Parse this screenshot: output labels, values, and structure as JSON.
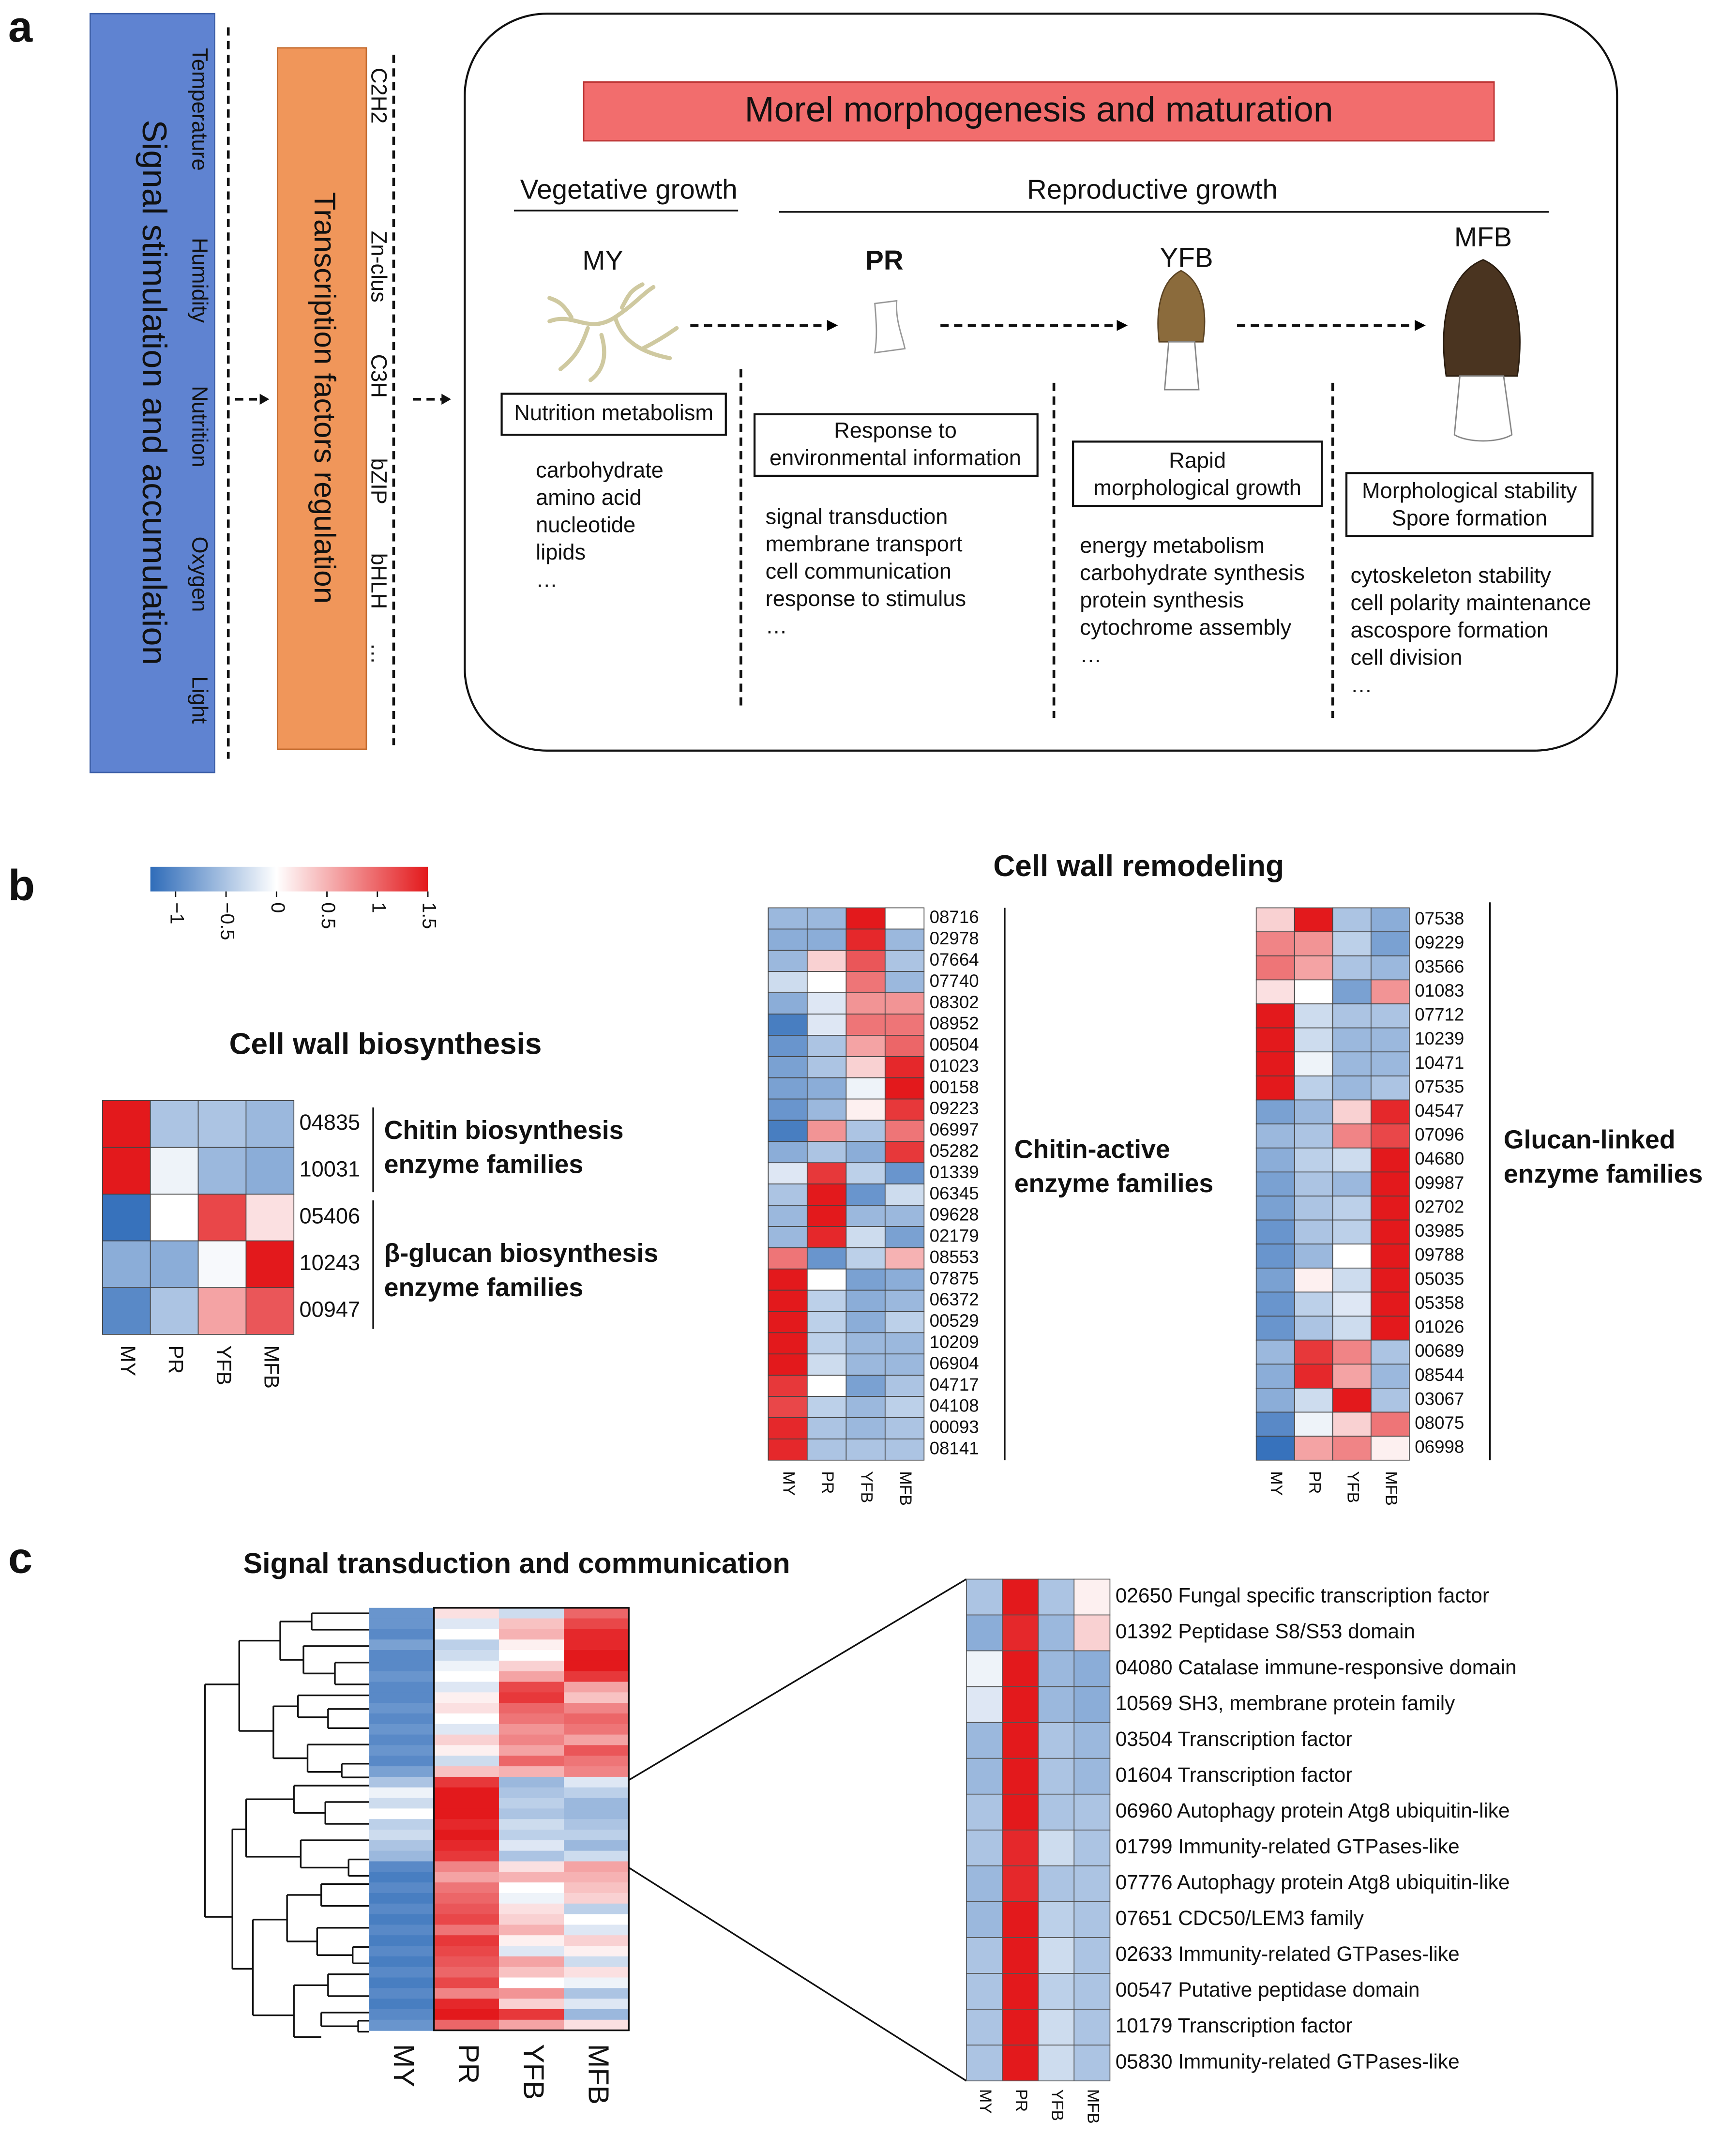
{
  "panel_a": {
    "label": "a",
    "signal_box": "Signal stimulation and accumulation",
    "signals": [
      "Temperature",
      "Humidity",
      "Nutrition",
      "Oxygen",
      "Light"
    ],
    "tf_box": "Transcription factors regulation",
    "tfs": [
      "C2H2",
      "Zn-clus",
      "C3H",
      "bZIP",
      "bHLH",
      "…"
    ],
    "title": "Morel morphogenesis and maturation",
    "phases": [
      "Vegetative growth",
      "Reproductive growth"
    ],
    "stages": [
      {
        "name": "MY",
        "box": [
          "Nutrition metabolism"
        ],
        "items": [
          "carbohydrate",
          "amino acid",
          "nucleotide",
          "lipids",
          "…"
        ]
      },
      {
        "name": "PR",
        "box": [
          "Response to",
          "environmental information"
        ],
        "items": [
          "signal transduction",
          "membrane transport",
          "cell communication",
          "response to stimulus",
          "…"
        ]
      },
      {
        "name": "YFB",
        "box": [
          "Rapid",
          "morphological growth"
        ],
        "items": [
          "energy metabolism",
          "carbohydrate synthesis",
          "protein synthesis",
          "cytochrome assembly",
          "…"
        ]
      },
      {
        "name": "MFB",
        "box": [
          "Morphological stability",
          "Spore formation"
        ],
        "items": [
          "cytoskeleton stability",
          "cell polarity maintenance",
          "ascospore formation",
          "cell division",
          "…"
        ]
      }
    ]
  },
  "panel_b": {
    "label": "b",
    "colorscale": {
      "range": [
        -1.25,
        1.5
      ],
      "colors": [
        "#2f6cb9",
        "#ffffff",
        "#e3191c"
      ],
      "ticks": [
        {
          "value": -1,
          "label": "−1"
        },
        {
          "value": -0.5,
          "label": "−0.5"
        },
        0,
        0.5,
        1,
        1.5
      ]
    },
    "title_remodeling": "Cell wall remodeling",
    "biosynthesis": {
      "title": "Cell wall biosynthesis",
      "rows": [
        "04835",
        "10031",
        "05406",
        "10243",
        "00947"
      ],
      "columns": [
        "MY",
        "PR",
        "YFB",
        "MFB"
      ],
      "groups": [
        [
          "Chitin biosynthesis",
          "enzyme families"
        ],
        [
          "β-glucan biosynthesis",
          "enzyme families"
        ]
      ],
      "values": [
        [
          1.5,
          -0.5,
          -0.5,
          -0.6
        ],
        [
          1.5,
          -0.1,
          -0.6,
          -0.7
        ],
        [
          -1.2,
          0,
          1.2,
          0.2
        ],
        [
          -0.7,
          -0.7,
          -0.05,
          1.5
        ],
        [
          -1.0,
          -0.5,
          0.6,
          1.1
        ]
      ]
    },
    "chitin_active": {
      "rows": [
        "08716",
        "02978",
        "07664",
        "07740",
        "08302",
        "08952",
        "00504",
        "01023",
        "00158",
        "09223",
        "06997",
        "05282",
        "01339",
        "06345",
        "09628",
        "02179",
        "08553",
        "07875",
        "06372",
        "00529",
        "10209",
        "06904",
        "04717",
        "04108",
        "00093",
        "08141"
      ],
      "columns": [
        "MY",
        "PR",
        "YFB",
        "MFB"
      ],
      "group": [
        "Chitin-active",
        "enzyme families"
      ],
      "values": [
        [
          -0.6,
          -0.6,
          1.5,
          0
        ],
        [
          -0.7,
          -0.7,
          1.4,
          -0.6
        ],
        [
          -0.6,
          0.3,
          1.1,
          -0.5
        ],
        [
          -0.3,
          0,
          0.9,
          -0.6
        ],
        [
          -0.7,
          -0.2,
          0.7,
          0.7
        ],
        [
          -1.1,
          -0.2,
          0.9,
          0.9
        ],
        [
          -0.9,
          -0.5,
          0.6,
          1.0
        ],
        [
          -0.8,
          -0.5,
          0.3,
          1.4
        ],
        [
          -0.8,
          -0.7,
          -0.1,
          1.5
        ],
        [
          -0.9,
          -0.6,
          0.1,
          1.3
        ],
        [
          -1.1,
          0.7,
          -0.5,
          0.9
        ],
        [
          -0.7,
          -0.5,
          -0.7,
          1.3
        ],
        [
          -0.2,
          1.3,
          -0.4,
          -0.9
        ],
        [
          -0.5,
          1.5,
          -0.9,
          -0.3
        ],
        [
          -0.6,
          1.5,
          -0.6,
          -0.6
        ],
        [
          -0.6,
          1.4,
          -0.3,
          -0.8
        ],
        [
          0.9,
          -0.9,
          -0.4,
          0.5
        ],
        [
          1.5,
          0,
          -0.8,
          -0.7
        ],
        [
          1.5,
          -0.4,
          -0.7,
          -0.6
        ],
        [
          1.5,
          -0.4,
          -0.7,
          -0.4
        ],
        [
          1.5,
          -0.4,
          -0.6,
          -0.6
        ],
        [
          1.5,
          -0.3,
          -0.6,
          -0.6
        ],
        [
          1.3,
          0,
          -0.8,
          -0.5
        ],
        [
          1.2,
          -0.4,
          -0.6,
          -0.4
        ],
        [
          1.4,
          -0.5,
          -0.6,
          -0.5
        ],
        [
          1.4,
          -0.5,
          -0.5,
          -0.5
        ]
      ]
    },
    "glucan_linked": {
      "rows": [
        "07538",
        "09229",
        "03566",
        "01083",
        "07712",
        "10239",
        "10471",
        "07535",
        "04547",
        "07096",
        "04680",
        "09987",
        "02702",
        "03985",
        "09788",
        "05035",
        "05358",
        "01026",
        "00689",
        "08544",
        "03067",
        "08075",
        "06998"
      ],
      "columns": [
        "MY",
        "PR",
        "YFB",
        "MFB"
      ],
      "group": [
        "Glucan-linked",
        "enzyme families"
      ],
      "values": [
        [
          0.3,
          1.5,
          -0.5,
          -0.7
        ],
        [
          0.8,
          0.7,
          -0.4,
          -0.8
        ],
        [
          0.9,
          0.6,
          -0.5,
          -0.6
        ],
        [
          0.2,
          0,
          -0.8,
          0.7
        ],
        [
          1.5,
          -0.3,
          -0.5,
          -0.5
        ],
        [
          1.5,
          -0.3,
          -0.6,
          -0.6
        ],
        [
          1.5,
          -0.1,
          -0.6,
          -0.6
        ],
        [
          1.5,
          -0.4,
          -0.6,
          -0.5
        ],
        [
          -0.8,
          -0.6,
          0.3,
          1.4
        ],
        [
          -0.6,
          -0.5,
          0.8,
          1.2
        ],
        [
          -0.7,
          -0.4,
          -0.3,
          1.5
        ],
        [
          -0.8,
          -0.5,
          -0.6,
          1.5
        ],
        [
          -0.8,
          -0.5,
          -0.4,
          1.5
        ],
        [
          -0.9,
          -0.5,
          -0.4,
          1.5
        ],
        [
          -0.9,
          -0.6,
          0,
          1.5
        ],
        [
          -0.8,
          0.1,
          -0.3,
          1.5
        ],
        [
          -0.9,
          -0.4,
          -0.2,
          1.5
        ],
        [
          -0.9,
          -0.5,
          -0.3,
          1.5
        ],
        [
          -0.6,
          1.3,
          0.8,
          -0.5
        ],
        [
          -0.7,
          1.4,
          0.6,
          -0.6
        ],
        [
          -0.7,
          -0.3,
          1.5,
          -0.5
        ],
        [
          -1.0,
          -0.1,
          0.3,
          0.9
        ],
        [
          -1.2,
          0.6,
          0.8,
          0.1
        ]
      ]
    }
  },
  "panel_c": {
    "label": "c",
    "title": "Signal transduction and communication",
    "overview": {
      "columns": [
        "MY",
        "PR",
        "YFB",
        "MFB"
      ],
      "values": [
        [
          -0.9,
          0.2,
          -0.3,
          1.0
        ],
        [
          -0.9,
          -0.2,
          0.4,
          1.2
        ],
        [
          -1.0,
          0.0,
          0.5,
          1.4
        ],
        [
          -0.8,
          -0.4,
          0.1,
          1.4
        ],
        [
          -1.0,
          -0.3,
          0.0,
          1.5
        ],
        [
          -1.0,
          -0.1,
          0.3,
          1.5
        ],
        [
          -0.9,
          0.0,
          0.6,
          1.3
        ],
        [
          -1.0,
          -0.2,
          1.2,
          0.6
        ],
        [
          -1.0,
          0.1,
          1.3,
          0.4
        ],
        [
          -0.9,
          0.2,
          1.0,
          0.8
        ],
        [
          -1.0,
          0.0,
          0.9,
          1.0
        ],
        [
          -0.9,
          -0.2,
          0.7,
          0.9
        ],
        [
          -1.0,
          0.3,
          0.8,
          0.6
        ],
        [
          -0.9,
          0.1,
          0.6,
          1.1
        ],
        [
          -1.0,
          -0.3,
          1.0,
          0.9
        ],
        [
          -0.8,
          0.4,
          0.5,
          0.8
        ],
        [
          -0.5,
          1.3,
          -0.6,
          -0.2
        ],
        [
          -0.1,
          1.5,
          -0.5,
          -0.4
        ],
        [
          -0.3,
          1.5,
          -0.4,
          -0.6
        ],
        [
          0.0,
          1.5,
          -0.5,
          -0.6
        ],
        [
          -0.4,
          1.4,
          -0.3,
          -0.5
        ],
        [
          -0.3,
          1.5,
          -0.4,
          -0.4
        ],
        [
          -0.5,
          1.4,
          -0.2,
          -0.6
        ],
        [
          -0.6,
          1.3,
          -0.5,
          -0.3
        ],
        [
          -1.0,
          0.8,
          0.2,
          0.6
        ],
        [
          -1.1,
          0.6,
          0.5,
          0.5
        ],
        [
          -1.0,
          0.9,
          0.0,
          0.4
        ],
        [
          -1.1,
          1.0,
          -0.1,
          0.3
        ],
        [
          -1.0,
          1.1,
          0.2,
          -0.4
        ],
        [
          -1.1,
          1.2,
          0.3,
          0.0
        ],
        [
          -1.0,
          0.9,
          0.5,
          -0.2
        ],
        [
          -1.1,
          1.3,
          0.1,
          0.3
        ],
        [
          -1.0,
          1.2,
          -0.2,
          0.1
        ],
        [
          -1.1,
          1.1,
          0.6,
          -0.3
        ],
        [
          -1.0,
          1.0,
          0.4,
          0.2
        ],
        [
          -1.1,
          1.2,
          0.0,
          -0.1
        ],
        [
          -1.0,
          0.8,
          0.7,
          -0.5
        ],
        [
          -1.1,
          1.4,
          0.3,
          -0.2
        ],
        [
          -1.0,
          1.5,
          1.3,
          -0.6
        ],
        [
          -0.9,
          1.0,
          0.6,
          0.2
        ]
      ]
    },
    "zoom": {
      "columns": [
        "MY",
        "PR",
        "YFB",
        "MFB"
      ],
      "rows": [
        "02650 Fungal specific transcription factor",
        "01392 Peptidase S8/S53 domain",
        "04080 Catalase immune-responsive domain",
        "10569 SH3, membrane protein family",
        "03504 Transcription factor",
        "01604 Transcription factor",
        "06960 Autophagy protein Atg8 ubiquitin-like",
        "01799 Immunity-related GTPases-like",
        "07776 Autophagy protein Atg8 ubiquitin-like",
        "07651 CDC50/LEM3 family",
        "02633 Immunity-related GTPases-like",
        "00547 Putative peptidase domain",
        "10179 Transcription factor",
        "05830 Immunity-related GTPases-like"
      ],
      "values": [
        [
          -0.5,
          1.5,
          -0.5,
          0.1
        ],
        [
          -0.7,
          1.4,
          -0.6,
          0.3
        ],
        [
          -0.1,
          1.5,
          -0.6,
          -0.7
        ],
        [
          -0.2,
          1.5,
          -0.6,
          -0.7
        ],
        [
          -0.6,
          1.5,
          -0.5,
          -0.6
        ],
        [
          -0.6,
          1.5,
          -0.5,
          -0.6
        ],
        [
          -0.5,
          1.5,
          -0.5,
          -0.5
        ],
        [
          -0.5,
          1.4,
          -0.3,
          -0.5
        ],
        [
          -0.6,
          1.4,
          -0.5,
          -0.5
        ],
        [
          -0.6,
          1.5,
          -0.4,
          -0.5
        ],
        [
          -0.5,
          1.5,
          -0.3,
          -0.5
        ],
        [
          -0.5,
          1.5,
          -0.4,
          -0.5
        ],
        [
          -0.5,
          1.5,
          -0.3,
          -0.5
        ],
        [
          -0.5,
          1.5,
          -0.3,
          -0.5
        ]
      ]
    }
  }
}
